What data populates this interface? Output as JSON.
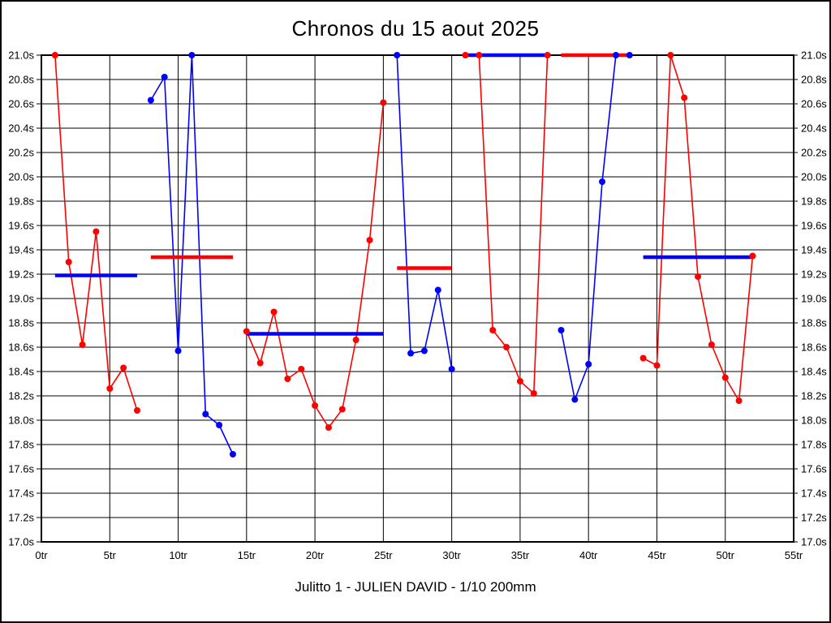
{
  "chart_data": {
    "type": "line",
    "title": "Chronos du 15 aout 2025",
    "footer": "Julitto 1 - JULIEN DAVID - 1/10 200mm",
    "x_unit": "tr",
    "y_unit": "s",
    "xlim": [
      0,
      55
    ],
    "ylim": [
      17.0,
      21.0
    ],
    "grid": true,
    "legend": "none",
    "clip_max_s": 21.0,
    "x_ticks": [
      0,
      5,
      10,
      15,
      20,
      25,
      30,
      35,
      40,
      45,
      50,
      55
    ],
    "x_tick_labels": [
      "0tr",
      "5tr",
      "10tr",
      "15tr",
      "20tr",
      "25tr",
      "30tr",
      "35tr",
      "40tr",
      "45tr",
      "50tr",
      "55tr"
    ],
    "y_ticks": [
      21.0,
      20.8,
      20.6,
      20.4,
      20.2,
      20.0,
      19.8,
      19.6,
      19.4,
      19.2,
      19.0,
      18.8,
      18.6,
      18.4,
      18.2,
      18.0,
      17.8,
      17.6,
      17.4,
      17.2,
      17.0
    ],
    "y_tick_labels": [
      "21.0s",
      "20.8s",
      "20.6s",
      "20.4s",
      "20.2s",
      "20.0s",
      "19.8s",
      "19.6s",
      "19.4s",
      "19.2s",
      "19.0s",
      "18.8s",
      "18.6s",
      "18.4s",
      "18.2s",
      "18.0s",
      "17.8s",
      "17.6s",
      "17.4s",
      "17.2s",
      "17.0s"
    ],
    "colors": {
      "red": "#ff0000",
      "blue": "#0000ff",
      "grid": "#000000",
      "background": "#ffffff"
    },
    "stints": [
      {
        "name": "stint-1",
        "color": "red",
        "start_lap": 1,
        "lap_times_s": [
          21.0,
          19.3,
          18.62,
          19.55,
          18.26,
          18.43,
          18.08
        ],
        "avg_line": {
          "value_s": 19.19,
          "color": "blue",
          "from_lap": 1,
          "to_lap": 7
        }
      },
      {
        "name": "stint-2",
        "color": "blue",
        "start_lap": 8,
        "lap_times_s": [
          20.63,
          20.82,
          18.57,
          21.0,
          18.05,
          17.96,
          17.72
        ],
        "avg_line": {
          "value_s": 19.34,
          "color": "red",
          "from_lap": 8,
          "to_lap": 14
        }
      },
      {
        "name": "stint-3",
        "color": "red",
        "start_lap": 15,
        "lap_times_s": [
          18.73,
          18.47,
          18.89,
          18.34,
          18.42,
          18.12,
          17.94,
          18.09,
          18.66,
          19.48,
          20.61
        ],
        "avg_line": {
          "value_s": 18.71,
          "color": "blue",
          "from_lap": 15,
          "to_lap": 25
        }
      },
      {
        "name": "stint-4",
        "color": "blue",
        "start_lap": 26,
        "lap_times_s": [
          21.0,
          18.55,
          18.57,
          19.07,
          18.42
        ],
        "avg_line": {
          "value_s": 19.25,
          "color": "red",
          "from_lap": 26,
          "to_lap": 30
        }
      },
      {
        "name": "stint-5",
        "color": "red",
        "start_lap": 31,
        "lap_times_s": [
          21.0,
          21.0,
          18.74,
          18.6,
          18.32,
          18.22,
          21.0
        ],
        "avg_line": {
          "value_s": 21.0,
          "color": "blue",
          "from_lap": 31,
          "to_lap": 37
        }
      },
      {
        "name": "stint-6",
        "color": "blue",
        "start_lap": 38,
        "lap_times_s": [
          18.74,
          18.17,
          18.46,
          19.96,
          21.0,
          21.0
        ],
        "avg_line": {
          "value_s": 21.0,
          "color": "red",
          "from_lap": 38,
          "to_lap": 43
        }
      },
      {
        "name": "stint-7",
        "color": "red",
        "start_lap": 44,
        "lap_times_s": [
          18.51,
          18.45,
          21.0,
          20.65,
          19.18,
          18.62,
          18.35,
          18.16,
          19.35
        ],
        "avg_line": {
          "value_s": 19.34,
          "color": "blue",
          "from_lap": 44,
          "to_lap": 52
        }
      }
    ]
  }
}
